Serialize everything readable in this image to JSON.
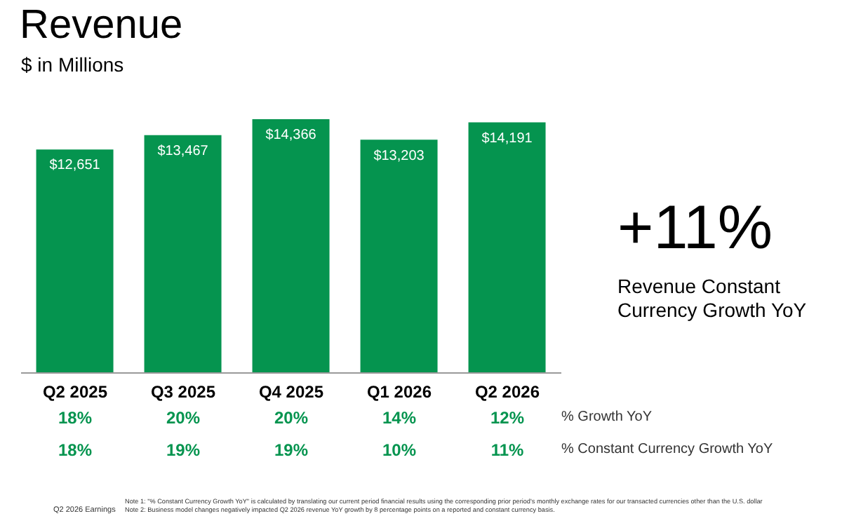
{
  "chart_data": {
    "type": "bar",
    "title": "Revenue",
    "subtitle": "$ in Millions",
    "categories": [
      "Q2 2025",
      "Q3 2025",
      "Q4 2025",
      "Q1 2026",
      "Q2 2026"
    ],
    "values": [
      12651,
      13467,
      14366,
      13203,
      14191
    ],
    "color": "#05944f",
    "value_labels": [
      "$12,651",
      "$13,467",
      "$14,366",
      "$13,203",
      "$14,191"
    ],
    "annotations": [
      "+11%",
      "Revenue Constant Currency Growth YoY",
      "% Growth YoY",
      "% Constant Currency Growth YoY",
      "Q2 2026 Earnings",
      "Note 1: \"% Constant Currency Growth YoY\" is calculated by translating our current period financial results using the corresponding prior period's monthly exchange rates for our transacted currencies other than the U.S. dollar",
      "Note 2: Business model changes negatively impacted Q2 2026 revenue YoY growth by 8 percentage points on a reported and constant currency basis.",
      "18%",
      "20%",
      "20%",
      "14%",
      "12%",
      "18%",
      "19%",
      "19%",
      "10%",
      "11%"
    ],
    "grid": false,
    "legend": false
  }
}
